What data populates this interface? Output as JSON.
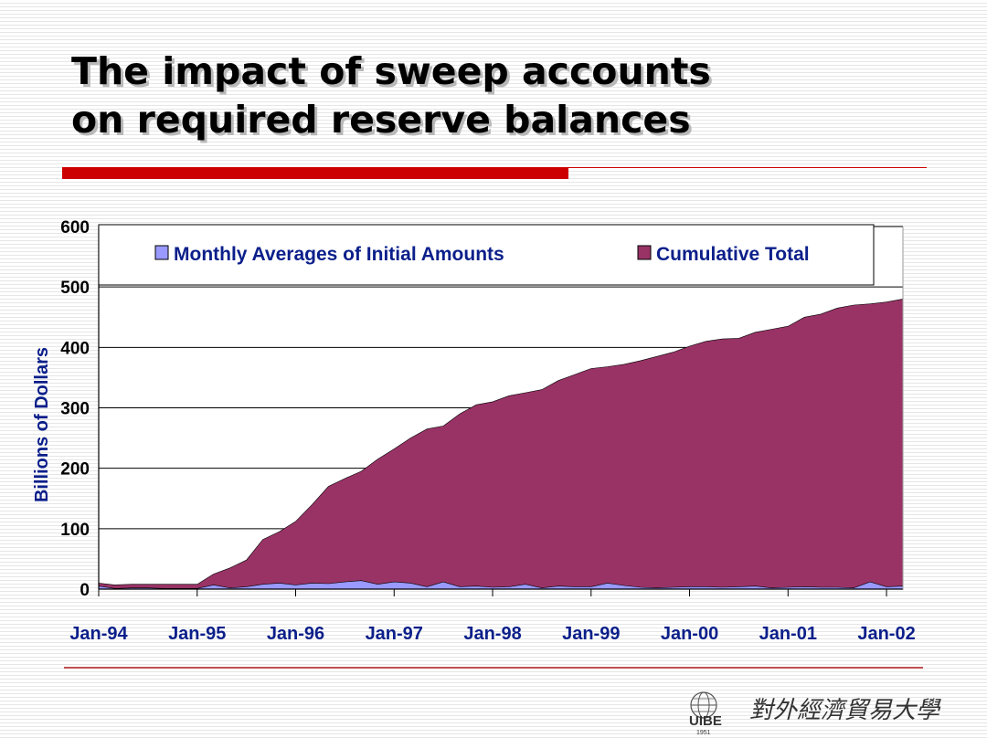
{
  "slide": {
    "title_line1": "The impact of sweep accounts",
    "title_line2": "on required reserve balances",
    "logo_text": "UIBE",
    "logo_year": "1951",
    "logo_calligraphy": "對外經濟貿易大學"
  },
  "colors": {
    "accent_red": "#cc0000",
    "cumulative_fill": "#993366",
    "monthly_fill": "#9999ff",
    "axis_label_blue": "#0b1f8a"
  },
  "chart_data": {
    "type": "area",
    "title": "",
    "xlabel": "",
    "ylabel": "Billions of Dollars",
    "ylim": [
      0,
      600
    ],
    "yticks": [
      "0",
      "100",
      "200",
      "300",
      "400",
      "500",
      "600"
    ],
    "xticks": [
      "Jan-94",
      "Jan-95",
      "Jan-96",
      "Jan-97",
      "Jan-98",
      "Jan-99",
      "Jan-00",
      "Jan-01",
      "Jan-02"
    ],
    "grid": true,
    "legend_position": "top",
    "x": [
      "1994-01",
      "1994-03",
      "1994-05",
      "1994-07",
      "1994-09",
      "1994-11",
      "1995-01",
      "1995-03",
      "1995-05",
      "1995-07",
      "1995-09",
      "1995-11",
      "1996-01",
      "1996-03",
      "1996-05",
      "1996-07",
      "1996-09",
      "1996-11",
      "1997-01",
      "1997-03",
      "1997-05",
      "1997-07",
      "1997-09",
      "1997-11",
      "1998-01",
      "1998-03",
      "1998-05",
      "1998-07",
      "1998-09",
      "1998-11",
      "1999-01",
      "1999-03",
      "1999-05",
      "1999-07",
      "1999-09",
      "1999-11",
      "2000-01",
      "2000-03",
      "2000-05",
      "2000-07",
      "2000-09",
      "2000-11",
      "2001-01",
      "2001-03",
      "2001-05",
      "2001-07",
      "2001-09",
      "2001-11",
      "2002-01",
      "2002-03"
    ],
    "series": [
      {
        "name": "Monthly Averages of Initial Amounts",
        "values": [
          5,
          1,
          2,
          2,
          1,
          1,
          1,
          7,
          2,
          4,
          8,
          10,
          7,
          10,
          9,
          12,
          14,
          8,
          12,
          10,
          4,
          12,
          4,
          5,
          3,
          4,
          8,
          2,
          5,
          4,
          4,
          10,
          6,
          3,
          2,
          3,
          4,
          4,
          3,
          4,
          5,
          2,
          3,
          4,
          3,
          3,
          2,
          12,
          4,
          5
        ]
      },
      {
        "name": "Cumulative Total",
        "values": [
          10,
          7,
          8,
          8,
          8,
          8,
          8,
          25,
          35,
          48,
          82,
          95,
          112,
          140,
          170,
          183,
          195,
          215,
          232,
          250,
          265,
          270,
          290,
          305,
          310,
          320,
          325,
          330,
          345,
          355,
          365,
          368,
          372,
          378,
          385,
          392,
          402,
          410,
          414,
          415,
          425,
          430,
          435,
          450,
          455,
          465,
          470,
          472,
          475,
          480
        ]
      }
    ]
  }
}
